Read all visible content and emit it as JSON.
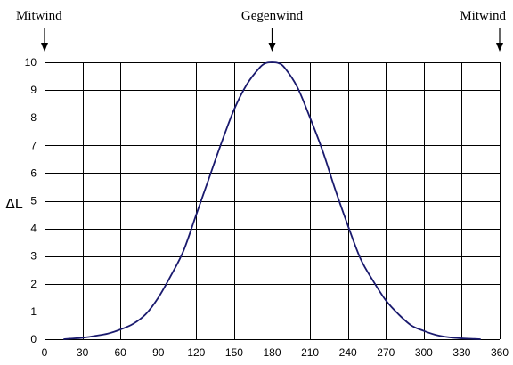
{
  "chart_data": {
    "type": "line",
    "title": "",
    "xlabel": "",
    "ylabel": "ΔL",
    "xlim": [
      0,
      360
    ],
    "ylim": [
      0,
      10
    ],
    "xticks": [
      0,
      30,
      60,
      90,
      120,
      150,
      180,
      210,
      240,
      270,
      300,
      330,
      360
    ],
    "yticks": [
      0,
      1,
      2,
      3,
      4,
      5,
      6,
      7,
      8,
      9,
      10
    ],
    "grid": true,
    "line_color": "#1a1a6e",
    "annotations": [
      {
        "text": "Mitwind",
        "x": 0
      },
      {
        "text": "Gegenwind",
        "x": 180
      },
      {
        "text": "Mitwind",
        "x": 360
      }
    ],
    "series": [
      {
        "x": [
          15,
          20,
          30,
          40,
          50,
          60,
          70,
          80,
          90,
          100,
          110,
          120,
          130,
          140,
          150,
          160,
          170,
          175,
          180,
          185,
          190,
          200,
          210,
          220,
          230,
          240,
          250,
          260,
          270,
          280,
          290,
          300,
          310,
          320,
          330,
          340,
          345
        ],
        "y": [
          0,
          0.02,
          0.05,
          0.12,
          0.2,
          0.35,
          0.55,
          0.9,
          1.5,
          2.3,
          3.2,
          4.5,
          5.8,
          7.1,
          8.3,
          9.2,
          9.8,
          9.97,
          10,
          9.97,
          9.8,
          9.1,
          8.0,
          6.8,
          5.4,
          4.1,
          2.9,
          2.1,
          1.4,
          0.9,
          0.5,
          0.3,
          0.15,
          0.07,
          0.03,
          0.01,
          0
        ]
      }
    ]
  }
}
